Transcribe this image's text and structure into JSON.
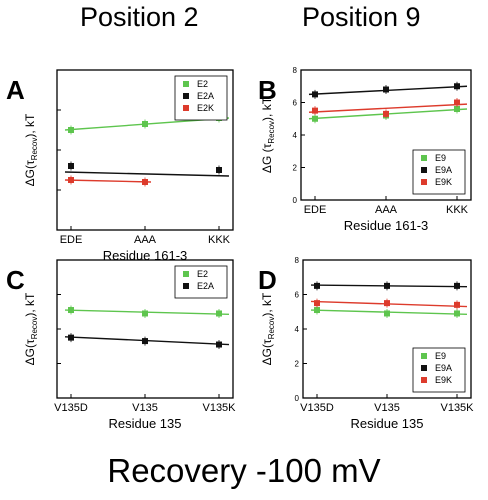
{
  "header": {
    "left": "Position 2",
    "right": "Position 9"
  },
  "footer": "Recovery -100 mV",
  "colors": {
    "green": "#5ec54e",
    "black": "#111111",
    "red": "#dd3b2c"
  },
  "chart_data": [
    {
      "panel_letter": "A",
      "type": "scatter",
      "categories": [
        "EDE",
        "AAA",
        "KKK"
      ],
      "xlabel": "Residue 161-3",
      "ylabel": {
        "main": "ΔG(τ",
        "sub": "Recov",
        "tail": "), kT"
      },
      "ylim": [
        0,
        8
      ],
      "yticks": [
        0,
        2,
        4,
        6,
        8
      ],
      "show_ytick_labels": false,
      "legend_position": "top-right",
      "series": [
        {
          "name": "E2",
          "color": "#5ec54e",
          "values": [
            5.0,
            5.3,
            5.6
          ],
          "fit": [
            5.0,
            5.6
          ]
        },
        {
          "name": "E2A",
          "color": "#111111",
          "values": [
            3.2,
            null,
            3.0
          ],
          "fit": [
            2.9,
            2.7
          ]
        },
        {
          "name": "E2K",
          "color": "#dd3b2c",
          "values": [
            2.5,
            2.4,
            null
          ],
          "fit": [
            2.5,
            2.4
          ],
          "fit_span": [
            0,
            1
          ]
        }
      ]
    },
    {
      "panel_letter": "B",
      "type": "scatter",
      "categories": [
        "EDE",
        "AAA",
        "KKK"
      ],
      "xlabel": "Residue 161-3",
      "ylabel": {
        "main": "ΔG (τ",
        "sub": "Recov",
        "tail": "), kT"
      },
      "ylim": [
        0,
        8
      ],
      "yticks": [
        0,
        2,
        4,
        6,
        8
      ],
      "show_ytick_labels": true,
      "legend_position": "bottom-right",
      "series": [
        {
          "name": "E9",
          "color": "#5ec54e",
          "values": [
            5.0,
            5.2,
            5.6
          ],
          "fit": [
            5.0,
            5.6
          ]
        },
        {
          "name": "E9A",
          "color": "#111111",
          "values": [
            6.5,
            6.8,
            7.0
          ],
          "fit": [
            6.5,
            7.0
          ]
        },
        {
          "name": "E9K",
          "color": "#dd3b2c",
          "values": [
            5.5,
            5.3,
            6.0
          ],
          "fit": [
            5.4,
            5.9
          ]
        }
      ]
    },
    {
      "panel_letter": "C",
      "type": "scatter",
      "categories": [
        "V135D",
        "V135",
        "V135K"
      ],
      "xlabel": "Residue 135",
      "ylabel": {
        "main": "ΔG(τ",
        "sub": "Recov",
        "tail": "), kT"
      },
      "ylim": [
        0,
        8
      ],
      "yticks": [
        0,
        2,
        4,
        6,
        8
      ],
      "show_ytick_labels": false,
      "legend_position": "top-right",
      "series": [
        {
          "name": "E2",
          "color": "#5ec54e",
          "values": [
            5.1,
            4.9,
            4.9
          ],
          "fit": [
            5.1,
            4.85
          ]
        },
        {
          "name": "E2A",
          "color": "#111111",
          "values": [
            3.5,
            3.3,
            3.1
          ],
          "fit": [
            3.55,
            3.1
          ]
        }
      ]
    },
    {
      "panel_letter": "D",
      "type": "scatter",
      "categories": [
        "V135D",
        "V135",
        "V135K"
      ],
      "xlabel": "Residue 135",
      "ylabel": {
        "main": "ΔG(τ",
        "sub": "Recov",
        "tail": "), kT"
      },
      "ylim": [
        0,
        8
      ],
      "yticks": [
        0,
        2,
        4,
        6,
        8
      ],
      "show_ytick_labels": true,
      "legend_position": "bottom-right",
      "series": [
        {
          "name": "E9",
          "color": "#5ec54e",
          "values": [
            5.1,
            4.9,
            4.9
          ],
          "fit": [
            5.1,
            4.85
          ]
        },
        {
          "name": "E9A",
          "color": "#111111",
          "values": [
            6.5,
            6.5,
            6.5
          ],
          "fit": [
            6.55,
            6.45
          ]
        },
        {
          "name": "E9K",
          "color": "#dd3b2c",
          "values": [
            5.5,
            5.5,
            5.4
          ],
          "fit": [
            5.6,
            5.3
          ]
        }
      ]
    }
  ]
}
